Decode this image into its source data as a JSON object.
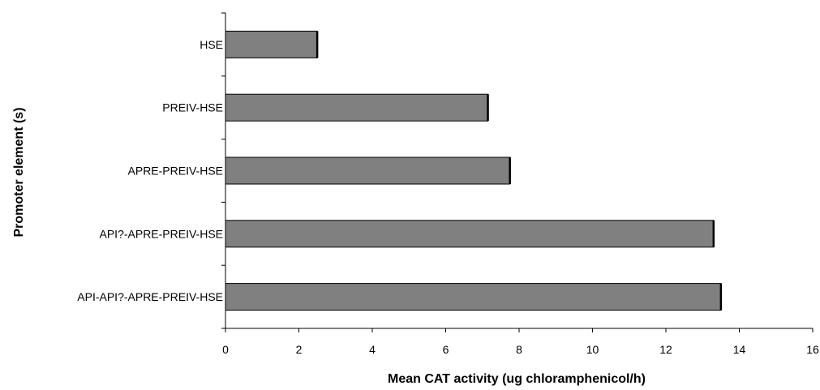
{
  "chart_data": {
    "type": "bar",
    "orientation": "horizontal",
    "categories": [
      "HSE",
      "PREIV-HSE",
      "APRE-PREIV-HSE",
      "API?-APRE-PREIV-HSE",
      "API-API?-APRE-PREIV-HSE"
    ],
    "values": [
      2.5,
      7.15,
      7.75,
      13.3,
      13.5
    ],
    "xlabel": "Mean CAT activity (ug chloramphenicol/h)",
    "ylabel": "Promoter element (s)",
    "xlim": [
      0,
      16
    ],
    "xticks": [
      0,
      2,
      4,
      6,
      8,
      10,
      12,
      14,
      16
    ],
    "grid": false,
    "legend": "none",
    "colors": {
      "bar": "#808080",
      "outline": "#000000"
    }
  }
}
